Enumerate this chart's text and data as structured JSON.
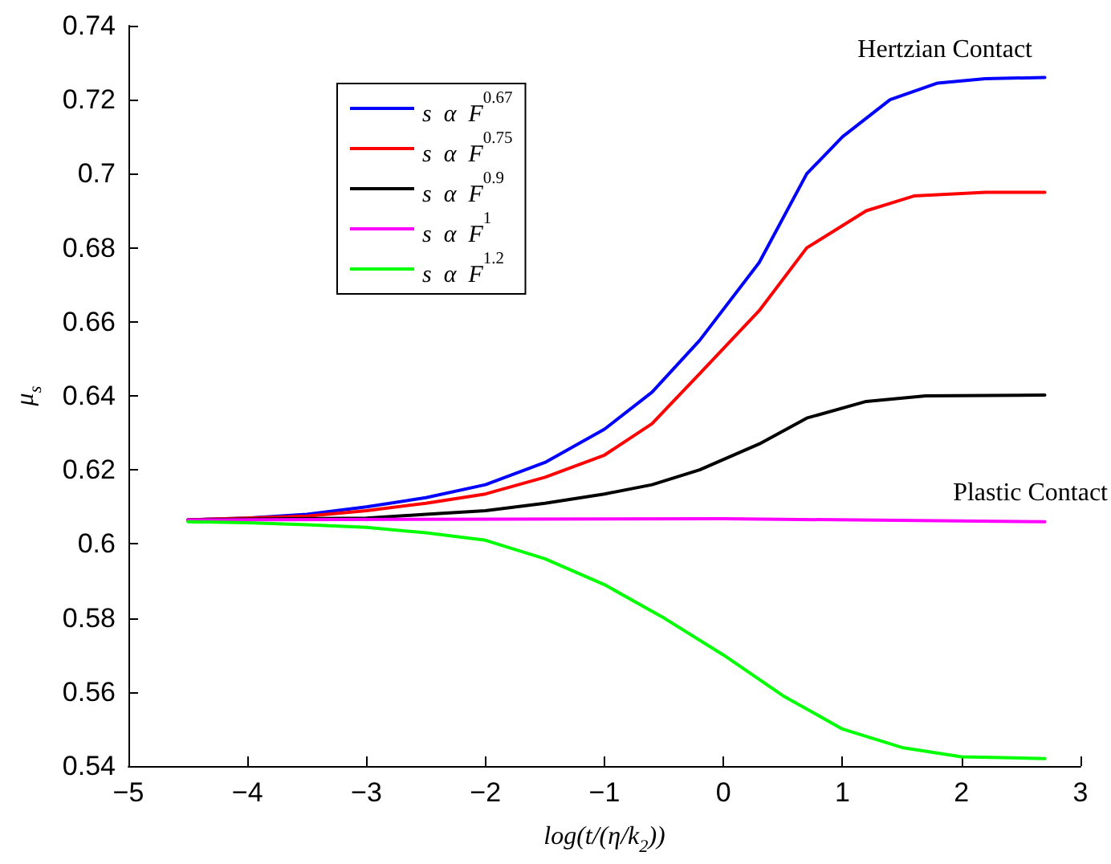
{
  "chart_data": {
    "type": "line",
    "xlabel": "log(t/(η/k$_{2}$))",
    "ylabel": "μ$_{s}$",
    "xlim": [
      -5,
      3
    ],
    "xticks": [
      -5,
      -4,
      -3,
      -2,
      -1,
      0,
      1,
      2,
      3
    ],
    "ylim": [
      0.54,
      0.74
    ],
    "yticks": [
      0.54,
      0.56,
      0.58,
      0.6,
      0.62,
      0.64,
      0.66,
      0.68,
      0.7,
      0.72,
      0.74
    ],
    "grid": false,
    "legend": "top left",
    "marker": "none",
    "line_style": "solid",
    "annotations": [
      "Hertzian Contact",
      "Plastic Contact"
    ],
    "series": [
      {
        "name": "s  α  F$^{0.67}$",
        "color": "#0000ff",
        "x": [
          -4.5,
          -4,
          -3.5,
          -3,
          -2.5,
          -2,
          -1.5,
          -1,
          -0.6,
          -0.2,
          0.3,
          0.7,
          1,
          1.4,
          1.8,
          2.2,
          2.7
        ],
        "values": [
          0.6065,
          0.607,
          0.608,
          0.61,
          0.6125,
          0.616,
          0.622,
          0.631,
          0.641,
          0.655,
          0.676,
          0.7,
          0.71,
          0.72,
          0.7245,
          0.7257,
          0.726
        ]
      },
      {
        "name": "s  α  F$^{0.75}$",
        "color": "#ff0000",
        "x": [
          -4.5,
          -4,
          -3.5,
          -3,
          -2.5,
          -2,
          -1.5,
          -1,
          -0.6,
          -0.2,
          0.3,
          0.7,
          1.2,
          1.6,
          2.2,
          2.7
        ],
        "values": [
          0.6065,
          0.607,
          0.6075,
          0.609,
          0.611,
          0.6135,
          0.618,
          0.624,
          0.6325,
          0.646,
          0.663,
          0.68,
          0.69,
          0.694,
          0.695,
          0.695
        ]
      },
      {
        "name": "s  α  F$^{0.9}$",
        "color": "#000000",
        "x": [
          -4.5,
          -4,
          -3,
          -2.5,
          -2,
          -1.5,
          -1,
          -0.6,
          -0.2,
          0.3,
          0.7,
          1.2,
          1.7,
          2.7
        ],
        "values": [
          0.6065,
          0.6067,
          0.607,
          0.608,
          0.609,
          0.611,
          0.6135,
          0.616,
          0.62,
          0.627,
          0.634,
          0.6385,
          0.64,
          0.6402
        ]
      },
      {
        "name": "s  α  F$^{1}$",
        "color": "#ff00ff",
        "x": [
          -4.5,
          0,
          2.7
        ],
        "values": [
          0.6065,
          0.6068,
          0.606
        ]
      },
      {
        "name": "s  α  F$^{1.2}$",
        "color": "#00ff00",
        "x": [
          -4.5,
          -4,
          -3.5,
          -3,
          -2.5,
          -2,
          -1.5,
          -1,
          -0.5,
          0,
          0.5,
          1,
          1.5,
          2,
          2.7
        ],
        "values": [
          0.606,
          0.6057,
          0.6052,
          0.6045,
          0.603,
          0.601,
          0.596,
          0.589,
          0.58,
          0.57,
          0.559,
          0.55,
          0.545,
          0.5425,
          0.542
        ]
      }
    ]
  }
}
